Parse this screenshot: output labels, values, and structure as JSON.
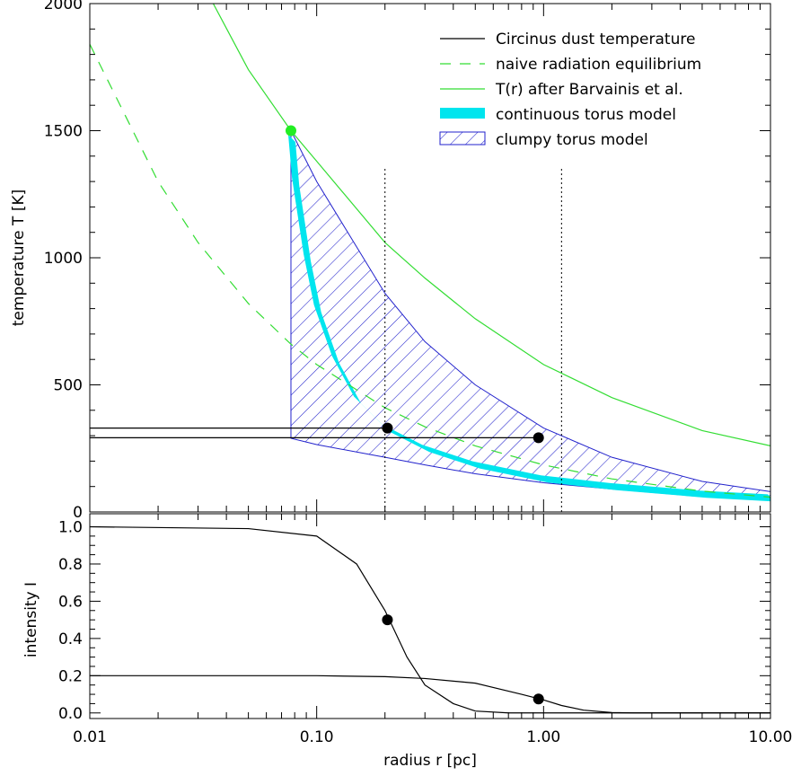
{
  "chart_data": [
    {
      "type": "line",
      "x_scale": "log",
      "xlim": [
        0.01,
        10.0
      ],
      "ylim": [
        0,
        2000
      ],
      "ylabel": "temperature T [K]",
      "y_ticks": [
        0,
        500,
        1000,
        1500,
        2000
      ],
      "colors": {
        "circinus": "#000000",
        "naive": "#33dd33",
        "barvainis": "#33dd33",
        "continuous": "#00e5ee",
        "clumpy": "#2222cc",
        "sublimation_point": "#22ee22"
      },
      "legend": {
        "position": "top-right",
        "entries": [
          {
            "label": "Circinus dust temperature",
            "style": "solid",
            "color_key": "circinus"
          },
          {
            "label": "naive radiation equilibrium",
            "style": "dashed",
            "color_key": "naive"
          },
          {
            "label": "T(r) after Barvainis et al.",
            "style": "solid",
            "color_key": "barvainis"
          },
          {
            "label": "continuous torus model",
            "style": "thick-band",
            "color_key": "continuous"
          },
          {
            "label": "clumpy torus model",
            "style": "hatched",
            "color_key": "clumpy"
          }
        ]
      },
      "series": [
        {
          "name": "Circinus dust temperature",
          "segments": [
            {
              "x": [
                0.01,
                0.2
              ],
              "y": [
                330,
                330
              ]
            },
            {
              "x": [
                0.01,
                0.95
              ],
              "y": [
                292,
                292
              ]
            }
          ],
          "points": [
            {
              "x": 0.205,
              "y": 330
            },
            {
              "x": 0.95,
              "y": 292
            }
          ]
        },
        {
          "name": "naive radiation equilibrium",
          "x": [
            0.01,
            0.02,
            0.03,
            0.05,
            0.077,
            0.1,
            0.2,
            0.3,
            0.5,
            1.0,
            2.0,
            5.0,
            10.0
          ],
          "y": [
            1840,
            1300,
            1060,
            820,
            660,
            580,
            410,
            335,
            260,
            185,
            130,
            82,
            58
          ]
        },
        {
          "name": "T(r) after Barvainis et al.",
          "x": [
            0.035,
            0.05,
            0.077,
            0.1,
            0.2,
            0.3,
            0.5,
            1.0,
            2.0,
            5.0,
            10.0
          ],
          "y": [
            2000,
            1740,
            1500,
            1380,
            1060,
            920,
            760,
            580,
            450,
            320,
            260
          ]
        },
        {
          "name": "continuous torus model",
          "x": [
            0.077,
            0.08,
            0.09,
            0.1,
            0.12,
            0.15,
            0.2,
            0.3,
            0.5,
            1.0,
            2.0,
            5.0,
            10.0
          ],
          "y": [
            1470,
            1300,
            1000,
            800,
            600,
            440,
            330,
            250,
            185,
            130,
            100,
            70,
            55
          ]
        },
        {
          "name": "clumpy torus model",
          "x": [
            0.077,
            0.1,
            0.2,
            0.3,
            0.5,
            1.0,
            2.0,
            5.0,
            10.0
          ],
          "upper": [
            1500,
            1300,
            860,
            670,
            500,
            330,
            215,
            120,
            80
          ],
          "lower": [
            290,
            265,
            215,
            185,
            150,
            115,
            90,
            60,
            45
          ]
        }
      ],
      "annotations": {
        "vertical_dotted_lines_x": [
          0.2,
          1.2
        ],
        "sublimation_point": {
          "x": 0.077,
          "y": 1500
        }
      }
    },
    {
      "type": "line",
      "x_scale": "log",
      "xlim": [
        0.01,
        10.0
      ],
      "ylim": [
        -0.03,
        1.07
      ],
      "xlabel": "radius r [pc]",
      "ylabel": "intensity I",
      "x_ticks": [
        "0.01",
        "0.10",
        "1.00",
        "10.00"
      ],
      "y_ticks": [
        "0.0",
        "0.2",
        "0.4",
        "0.6",
        "0.8",
        "1.0"
      ],
      "series": [
        {
          "name": "Circinus dust temperature",
          "x": [
            0.01,
            0.05,
            0.1,
            0.15,
            0.2,
            0.25,
            0.3,
            0.4,
            0.5,
            0.7,
            1.0,
            1.5,
            2.0,
            3.0,
            10.0
          ],
          "y": [
            1.0,
            0.99,
            0.95,
            0.8,
            0.55,
            0.3,
            0.15,
            0.05,
            0.01,
            0.0,
            0.0,
            0.0,
            0.0,
            0.0,
            0.0
          ],
          "points": [
            {
              "x": 0.205,
              "y": 0.5
            }
          ]
        },
        {
          "x": [
            0.01,
            0.1,
            0.2,
            0.3,
            0.5,
            0.8,
            1.0,
            1.2,
            1.5,
            2.0,
            2.5,
            10.0
          ],
          "y": [
            0.2,
            0.2,
            0.195,
            0.185,
            0.16,
            0.1,
            0.07,
            0.04,
            0.015,
            0.002,
            0.0,
            0.0
          ],
          "points": [
            {
              "x": 0.95,
              "y": 0.075
            }
          ]
        }
      ]
    }
  ]
}
